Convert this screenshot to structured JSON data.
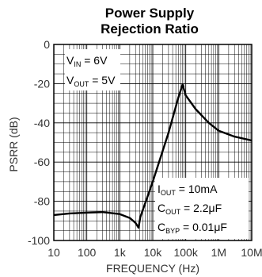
{
  "chart_data": {
    "type": "line",
    "title_line1": "Power Supply",
    "title_line2": "Rejection Ratio",
    "xlabel": "FREQUENCY (Hz)",
    "ylabel": "PSRR (dB)",
    "x_scale": "log",
    "xlim": [
      10,
      10000000
    ],
    "ylim": [
      -100,
      0
    ],
    "grid": true,
    "x_ticks": [
      10,
      100,
      1000,
      10000,
      100000,
      1000000,
      10000000
    ],
    "x_tick_labels": [
      "10",
      "100",
      "1k",
      "10k",
      "100k",
      "1M",
      "10M"
    ],
    "y_ticks": [
      0,
      -20,
      -40,
      -60,
      -80,
      -100
    ],
    "y_tick_labels": [
      "0",
      "-20",
      "-40",
      "-60",
      "-80",
      "-100"
    ],
    "series": [
      {
        "x": [
          10,
          30,
          100,
          300,
          1000,
          2000,
          3000,
          3700,
          4200,
          10000,
          30000,
          60000,
          80000,
          100000,
          200000,
          500000,
          1000000,
          3000000,
          10000000
        ],
        "y": [
          -87,
          -86.2,
          -85.8,
          -85.5,
          -86.5,
          -88.5,
          -91,
          -93.5,
          -88,
          -70,
          -45,
          -27,
          -20.5,
          -26,
          -33,
          -40,
          -44,
          -47,
          -49
        ]
      }
    ],
    "annotations": {
      "vin": {
        "main": "V",
        "sub": "IN",
        "rest": " = 6V"
      },
      "vout": {
        "main": "V",
        "sub": "OUT",
        "rest": " = 5V"
      },
      "iout": {
        "main": "I",
        "sub": "OUT",
        "rest": " = 10mA"
      },
      "cout": {
        "main": "C",
        "sub": "OUT",
        "rest": " = 2.2μF"
      },
      "cbyp": {
        "main": "C",
        "sub": "BYP",
        "rest": " = 0.01μF"
      }
    },
    "colors": {
      "line": "#000000",
      "grid": "#000000"
    }
  }
}
